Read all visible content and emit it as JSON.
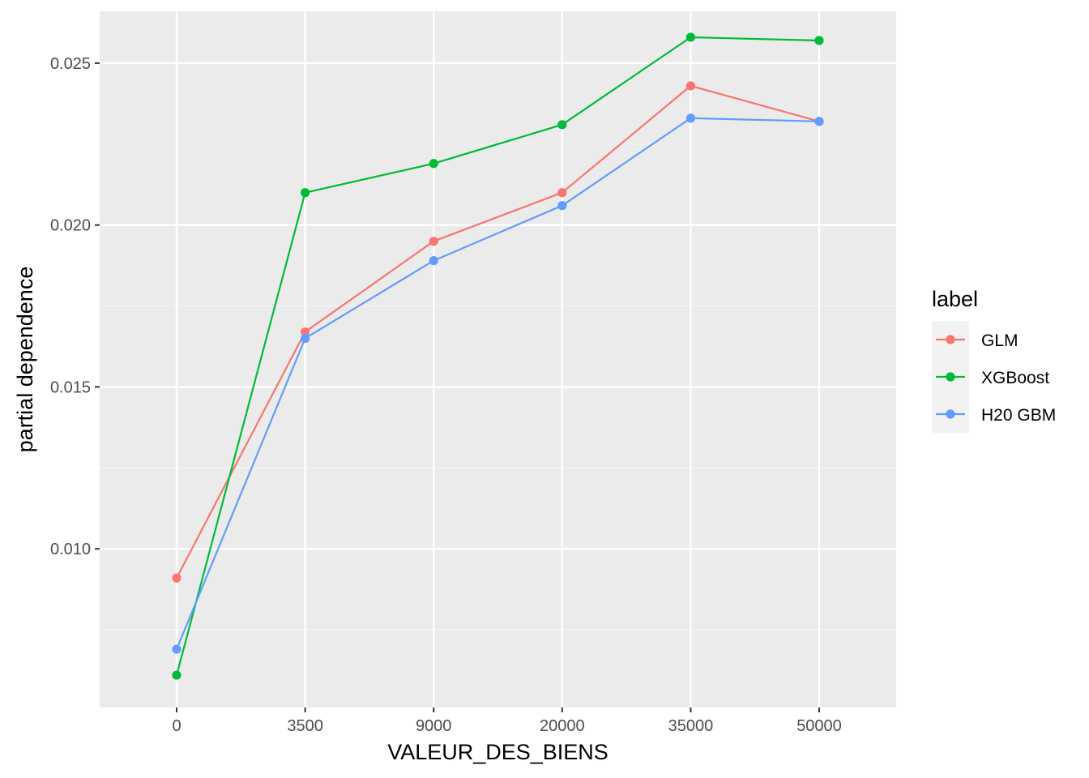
{
  "chart_data": {
    "type": "line",
    "title": "",
    "xlabel": "VALEUR_DES_BIENS",
    "ylabel": "partial dependence",
    "x_scale": "categorical",
    "categories": [
      "0",
      "3500",
      "9000",
      "20000",
      "35000",
      "50000"
    ],
    "ylim": [
      0.0051,
      0.0266
    ],
    "y_ticks": [
      {
        "value": 0.01,
        "label": "0.010"
      },
      {
        "value": 0.015,
        "label": "0.015"
      },
      {
        "value": 0.02,
        "label": "0.020"
      },
      {
        "value": 0.025,
        "label": "0.025"
      }
    ],
    "grid": true,
    "markers": "points",
    "legend": {
      "title": "label",
      "placement": "right"
    },
    "series": [
      {
        "name": "GLM",
        "color": "#F8766D",
        "values": [
          0.0091,
          0.0167,
          0.0195,
          0.021,
          0.0243,
          0.0232
        ]
      },
      {
        "name": "XGBoost",
        "color": "#00BA38",
        "values": [
          0.0061,
          0.021,
          0.0219,
          0.0231,
          0.0258,
          0.0257
        ]
      },
      {
        "name": "H20 GBM",
        "color": "#619CFF",
        "values": [
          0.0069,
          0.0165,
          0.0189,
          0.0206,
          0.0233,
          0.0232
        ]
      }
    ],
    "colors": {
      "panel_background": "#EBEBEB",
      "grid_major": "#FFFFFF",
      "grid_minor": "#F5F5F5",
      "tick_text": "#4D4D4D",
      "tick_mark": "#333333",
      "legend_key_background": "#F2F2F2"
    }
  }
}
